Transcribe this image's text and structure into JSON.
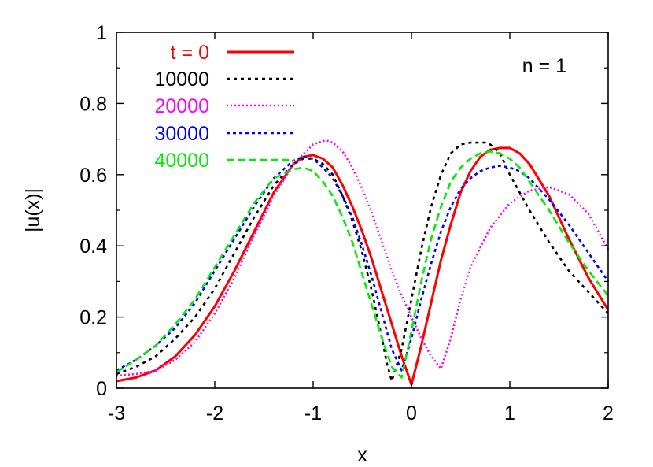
{
  "chart_data": {
    "type": "line",
    "title": "",
    "xlabel": "x",
    "ylabel": "|u(x)|",
    "xlim": [
      -3,
      2
    ],
    "ylim": [
      0,
      1
    ],
    "xticks": [
      "-3",
      "-2",
      "-1",
      "0",
      "1",
      "2"
    ],
    "yticks": [
      "0",
      "0.2",
      "0.4",
      "0.6",
      "0.8",
      "1"
    ],
    "grid": false,
    "legend_position": "top-left",
    "annotation": "n = 1",
    "series": [
      {
        "name": "t = 0",
        "color": "#ff0000",
        "dash": "solid",
        "x": [
          -3,
          -2.8,
          -2.6,
          -2.4,
          -2.2,
          -2.0,
          -1.8,
          -1.6,
          -1.4,
          -1.2,
          -1.1,
          -1.0,
          -0.9,
          -0.8,
          -0.7,
          -0.6,
          -0.5,
          -0.4,
          -0.3,
          -0.2,
          -0.1,
          0.0,
          0.1,
          0.2,
          0.3,
          0.4,
          0.5,
          0.6,
          0.7,
          0.8,
          0.9,
          1.0,
          1.1,
          1.2,
          1.4,
          1.6,
          1.8,
          2.0
        ],
        "y": [
          0.02,
          0.03,
          0.05,
          0.09,
          0.15,
          0.23,
          0.33,
          0.44,
          0.55,
          0.63,
          0.65,
          0.655,
          0.645,
          0.62,
          0.57,
          0.51,
          0.44,
          0.36,
          0.27,
          0.18,
          0.09,
          0.01,
          0.12,
          0.24,
          0.36,
          0.46,
          0.55,
          0.61,
          0.65,
          0.67,
          0.675,
          0.675,
          0.66,
          0.63,
          0.54,
          0.42,
          0.31,
          0.22
        ]
      },
      {
        "name": "10000",
        "color": "#000000",
        "dash": "4,5",
        "x": [
          -3,
          -2.8,
          -2.6,
          -2.4,
          -2.2,
          -2.0,
          -1.8,
          -1.6,
          -1.4,
          -1.2,
          -1.1,
          -1.0,
          -0.9,
          -0.8,
          -0.7,
          -0.6,
          -0.5,
          -0.4,
          -0.3,
          -0.25,
          -0.2,
          -0.1,
          0.0,
          0.1,
          0.2,
          0.3,
          0.4,
          0.5,
          0.6,
          0.7,
          0.75,
          0.8,
          0.9,
          1.0,
          1.2,
          1.4,
          1.6,
          1.8,
          2.0
        ],
        "y": [
          0.04,
          0.06,
          0.09,
          0.14,
          0.2,
          0.28,
          0.38,
          0.48,
          0.57,
          0.63,
          0.645,
          0.645,
          0.63,
          0.6,
          0.54,
          0.47,
          0.38,
          0.27,
          0.14,
          0.07,
          0.02,
          0.11,
          0.25,
          0.39,
          0.51,
          0.6,
          0.66,
          0.685,
          0.69,
          0.69,
          0.69,
          0.685,
          0.66,
          0.6,
          0.5,
          0.41,
          0.33,
          0.27,
          0.21
        ]
      },
      {
        "name": "20000",
        "color": "#ff00ff",
        "dash": "2,3",
        "x": [
          -3,
          -2.8,
          -2.6,
          -2.4,
          -2.2,
          -2.0,
          -1.8,
          -1.6,
          -1.4,
          -1.2,
          -1.0,
          -0.9,
          -0.85,
          -0.8,
          -0.7,
          -0.6,
          -0.5,
          -0.4,
          -0.3,
          -0.2,
          -0.1,
          0.0,
          0.1,
          0.2,
          0.3,
          0.4,
          0.5,
          0.6,
          0.8,
          1.0,
          1.2,
          1.4,
          1.6,
          1.8,
          2.0
        ],
        "y": [
          0.035,
          0.04,
          0.05,
          0.08,
          0.13,
          0.21,
          0.31,
          0.43,
          0.54,
          0.63,
          0.685,
          0.695,
          0.695,
          0.69,
          0.665,
          0.62,
          0.56,
          0.49,
          0.41,
          0.33,
          0.26,
          0.2,
          0.14,
          0.09,
          0.055,
          0.14,
          0.25,
          0.34,
          0.45,
          0.52,
          0.555,
          0.565,
          0.545,
          0.49,
          0.39
        ]
      },
      {
        "name": "30000",
        "color": "#0000ff",
        "dash": "4,4",
        "x": [
          -3,
          -2.8,
          -2.6,
          -2.4,
          -2.2,
          -2.0,
          -1.8,
          -1.6,
          -1.4,
          -1.2,
          -1.1,
          -1.0,
          -0.9,
          -0.8,
          -0.7,
          -0.6,
          -0.5,
          -0.4,
          -0.3,
          -0.2,
          -0.1,
          0.0,
          0.1,
          0.2,
          0.3,
          0.4,
          0.5,
          0.6,
          0.7,
          0.8,
          0.9,
          1.0,
          1.1,
          1.2,
          1.4,
          1.6,
          1.8,
          2.0
        ],
        "y": [
          0.05,
          0.08,
          0.12,
          0.17,
          0.24,
          0.33,
          0.42,
          0.51,
          0.59,
          0.64,
          0.65,
          0.645,
          0.62,
          0.59,
          0.54,
          0.48,
          0.4,
          0.31,
          0.21,
          0.11,
          0.05,
          0.14,
          0.25,
          0.35,
          0.44,
          0.51,
          0.56,
          0.59,
          0.61,
          0.62,
          0.625,
          0.62,
          0.61,
          0.59,
          0.53,
          0.46,
          0.38,
          0.3
        ]
      },
      {
        "name": "40000",
        "color": "#00ee00",
        "dash": "9,5",
        "x": [
          -3,
          -2.8,
          -2.6,
          -2.4,
          -2.2,
          -2.0,
          -1.8,
          -1.6,
          -1.4,
          -1.2,
          -1.1,
          -1.0,
          -0.9,
          -0.8,
          -0.7,
          -0.6,
          -0.5,
          -0.4,
          -0.3,
          -0.2,
          -0.1,
          0.0,
          0.1,
          0.2,
          0.3,
          0.4,
          0.5,
          0.6,
          0.7,
          0.8,
          0.9,
          1.0,
          1.1,
          1.2,
          1.4,
          1.6,
          1.8,
          2.0
        ],
        "y": [
          0.045,
          0.08,
          0.12,
          0.18,
          0.25,
          0.34,
          0.43,
          0.52,
          0.59,
          0.615,
          0.62,
          0.61,
          0.58,
          0.54,
          0.48,
          0.41,
          0.32,
          0.23,
          0.14,
          0.06,
          0.03,
          0.16,
          0.3,
          0.42,
          0.51,
          0.58,
          0.62,
          0.645,
          0.66,
          0.665,
          0.66,
          0.645,
          0.62,
          0.58,
          0.5,
          0.41,
          0.33,
          0.26
        ]
      }
    ]
  }
}
